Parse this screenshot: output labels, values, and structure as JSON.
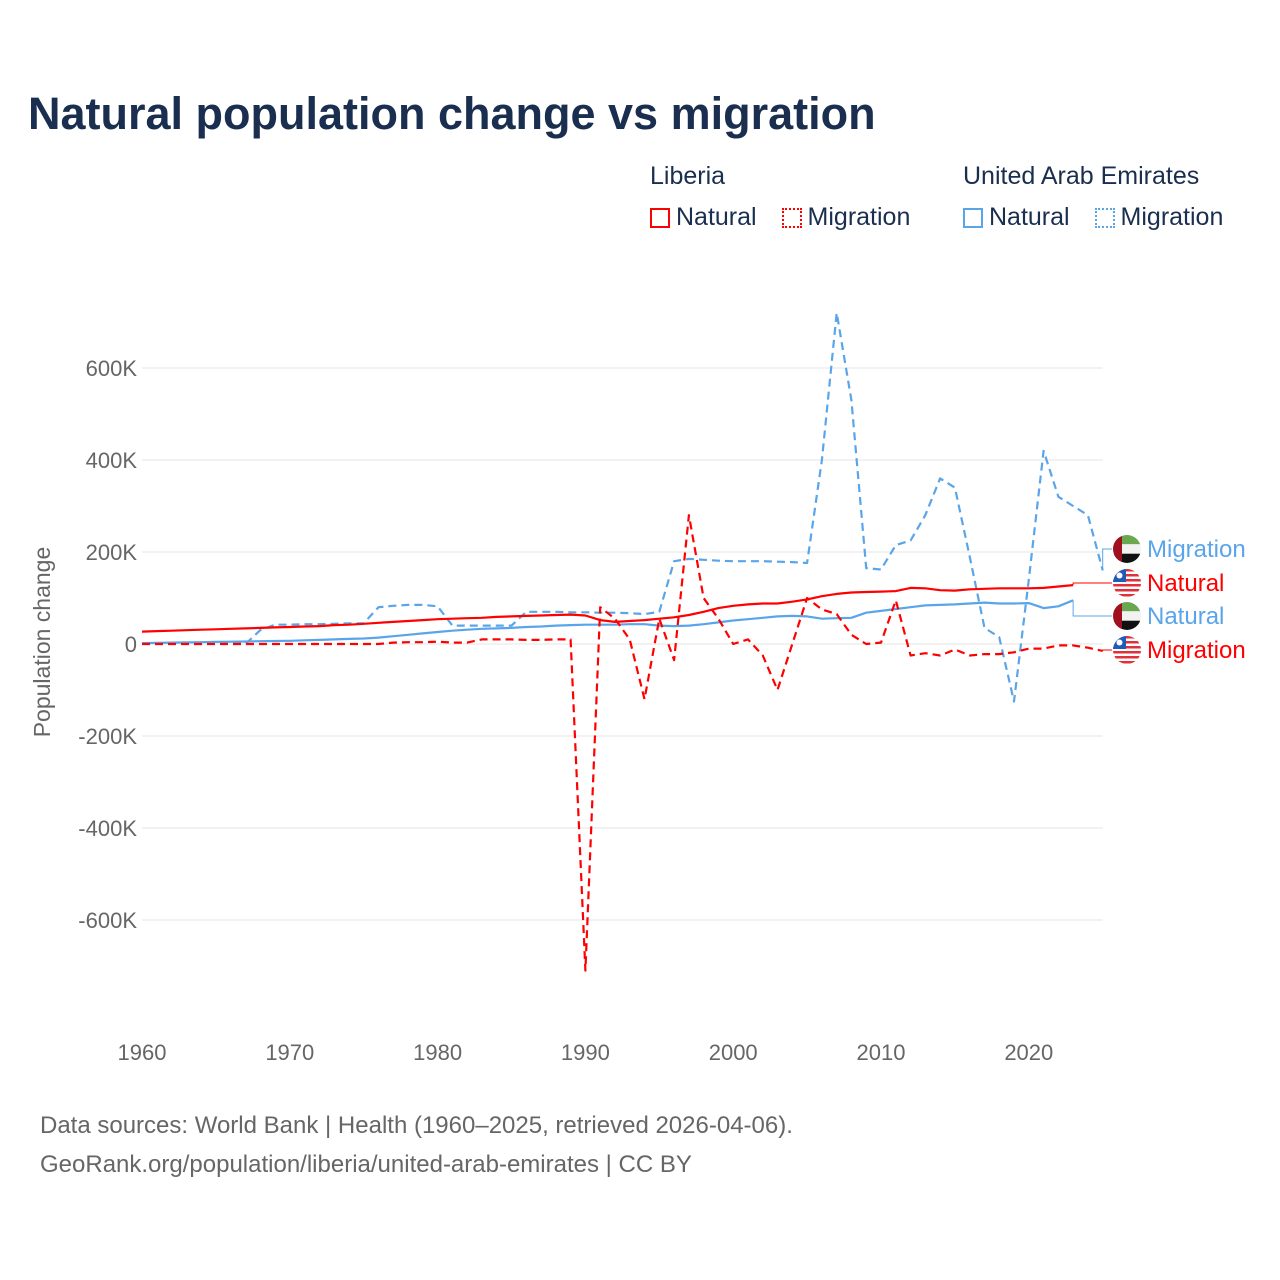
{
  "chart_data": {
    "type": "line",
    "title": "Natural population change vs migration",
    "ylabel": "Population change",
    "xlabel": "",
    "xlim": [
      1960,
      2025
    ],
    "ylim": [
      -800000,
      750000
    ],
    "x_ticks": [
      1960,
      1970,
      1980,
      1990,
      2000,
      2010,
      2020
    ],
    "x_tick_labels": [
      "1960",
      "1970",
      "1980",
      "1990",
      "2000",
      "2010",
      "2020"
    ],
    "y_ticks": [
      600000,
      400000,
      200000,
      0,
      -200000,
      -400000,
      -600000
    ],
    "y_tick_labels": [
      "600K",
      "400K",
      "200K",
      "0",
      "-200K",
      "-400K",
      "-600K"
    ],
    "grid": true,
    "legend_position": "top-right",
    "legend": {
      "groups": [
        {
          "country": "Liberia",
          "items": [
            "Natural",
            "Migration"
          ]
        },
        {
          "country": "United Arab Emirates",
          "items": [
            "Natural",
            "Migration"
          ]
        }
      ]
    },
    "series": [
      {
        "name": "Liberia Natural",
        "label": "Natural",
        "country": "Liberia",
        "color": "#ff0000",
        "dash": false,
        "start_year": 1960,
        "values": [
          27000,
          28000,
          29000,
          30000,
          31000,
          32000,
          33000,
          34000,
          35000,
          36000,
          37000,
          38000,
          39000,
          41000,
          42000,
          44000,
          46000,
          48000,
          50000,
          52000,
          54000,
          55000,
          56000,
          57000,
          59000,
          60000,
          61000,
          62000,
          63000,
          64000,
          62000,
          52000,
          48000,
          50000,
          52000,
          55000,
          58000,
          63000,
          70000,
          78000,
          83000,
          86000,
          88000,
          88000,
          92000,
          97000,
          104000,
          109000,
          112000,
          113000,
          114000,
          115000,
          122000,
          121000,
          117000,
          116000,
          119000,
          120000,
          121000,
          121000,
          121000,
          122000,
          125000,
          128000
        ]
      },
      {
        "name": "Liberia Migration",
        "label": "Migration",
        "country": "Liberia",
        "color": "#ff0000",
        "dash": true,
        "start_year": 1960,
        "values": [
          0,
          0,
          0,
          0,
          0,
          0,
          0,
          0,
          0,
          0,
          0,
          0,
          0,
          0,
          0,
          0,
          0,
          3000,
          4000,
          4000,
          5000,
          3000,
          3000,
          10000,
          10000,
          10000,
          9000,
          9000,
          10000,
          10000,
          -710000,
          80000,
          55000,
          10000,
          -120000,
          55000,
          -35000,
          280000,
          100000,
          55000,
          0,
          10000,
          -25000,
          -100000,
          0,
          100000,
          75000,
          65000,
          20000,
          0,
          3000,
          95000,
          -25000,
          -20000,
          -25000,
          -12000,
          -25000,
          -22000,
          -22000,
          -18000,
          -10000,
          -10000,
          -3000,
          -3000,
          -8000,
          -15000
        ]
      },
      {
        "name": "United Arab Emirates Natural",
        "label": "Natural",
        "country": "United Arab Emirates",
        "color": "#5aa5ea",
        "dash": false,
        "start_year": 1960,
        "values": [
          2000,
          2500,
          3000,
          3500,
          4000,
          4500,
          5000,
          5500,
          6000,
          6500,
          7000,
          8000,
          9000,
          10000,
          11000,
          12000,
          14000,
          17000,
          20000,
          23000,
          26000,
          29000,
          31000,
          33000,
          34000,
          35000,
          37000,
          38000,
          40000,
          41000,
          42000,
          42000,
          42000,
          43000,
          43000,
          40000,
          39000,
          40000,
          43000,
          47000,
          51000,
          54000,
          57000,
          60000,
          61000,
          60000,
          55000,
          56000,
          57000,
          68000,
          72000,
          76000,
          80000,
          84000,
          85000,
          86000,
          88000,
          90000,
          88000,
          88000,
          89000,
          78000,
          82000,
          95000
        ]
      },
      {
        "name": "United Arab Emirates Migration",
        "label": "Migration",
        "country": "United Arab Emirates",
        "color": "#5aa5ea",
        "dash": true,
        "start_year": 1960,
        "values": [
          2000,
          2000,
          2000,
          2000,
          2000,
          2000,
          2000,
          0,
          30000,
          42000,
          42000,
          43000,
          43000,
          44000,
          45000,
          45000,
          80000,
          83000,
          85000,
          85000,
          82000,
          40000,
          40000,
          40000,
          40000,
          40000,
          70000,
          70000,
          70000,
          69000,
          69000,
          68000,
          68000,
          67000,
          65000,
          70000,
          180000,
          185000,
          183000,
          181000,
          180000,
          180000,
          180000,
          179000,
          178000,
          176000,
          400000,
          720000,
          530000,
          165000,
          162000,
          215000,
          225000,
          280000,
          360000,
          340000,
          190000,
          35000,
          15000,
          -125000,
          140000,
          420000,
          320000,
          300000,
          280000,
          160000
        ]
      }
    ],
    "end_labels": [
      {
        "text": "Migration",
        "country": "United Arab Emirates",
        "color": "#5aa5ea"
      },
      {
        "text": "Natural",
        "country": "Liberia",
        "color": "#ff0000"
      },
      {
        "text": "Natural",
        "country": "United Arab Emirates",
        "color": "#5aa5ea"
      },
      {
        "text": "Migration",
        "country": "Liberia",
        "color": "#ff0000"
      }
    ]
  },
  "footer": {
    "line1": "Data sources: World Bank | Health (1960–2025, retrieved 2026-04-06).",
    "line2": "GeoRank.org/population/liberia/united-arab-emirates | CC BY"
  }
}
